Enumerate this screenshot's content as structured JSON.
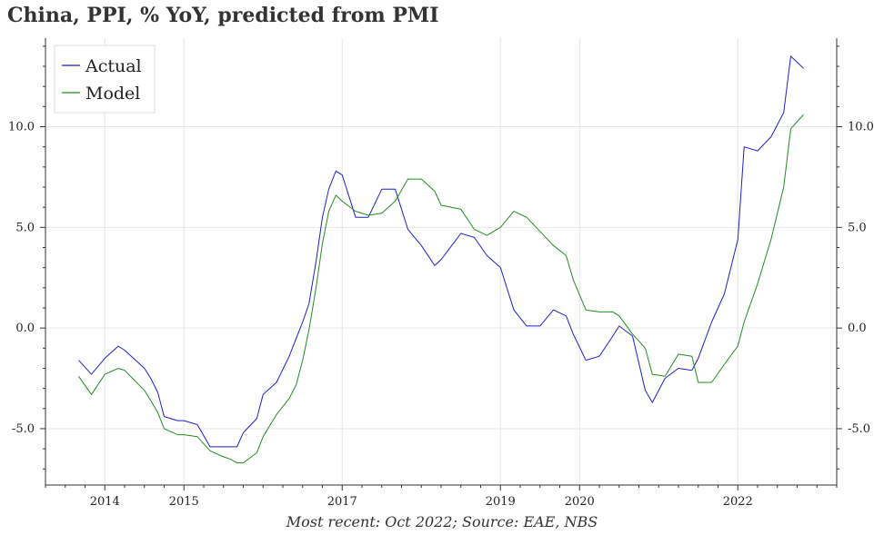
{
  "caption": "Most recent: Oct 2022; Source: EAE, NBS",
  "chart_data": {
    "type": "line",
    "title": "China, PPI, % YoY, predicted from PMI",
    "xlabel": "",
    "ylabel": "",
    "xlim": [
      2013.25,
      2023.25
    ],
    "ylim": [
      -7.8,
      14.4
    ],
    "x_ticks": [
      2014,
      2015,
      2017,
      2019,
      2020,
      2022
    ],
    "x_tick_labels": [
      "2014",
      "2015",
      "2017",
      "2019",
      "2020",
      "2022"
    ],
    "y_ticks": [
      -5,
      0,
      5,
      10
    ],
    "y_tick_labels": [
      "-5.0",
      "0.0",
      "5.0",
      "10.0"
    ],
    "grid": true,
    "legend": "top-left",
    "colors": {
      "Actual": "#1f1fcc",
      "Model": "#228b22"
    },
    "series": [
      {
        "name": "Actual",
        "x": [
          2013.67,
          2013.83,
          2014.0,
          2014.17,
          2014.25,
          2014.5,
          2014.58,
          2014.67,
          2014.75,
          2014.92,
          2015.0,
          2015.17,
          2015.33,
          2015.5,
          2015.58,
          2015.67,
          2015.75,
          2015.92,
          2016.0,
          2016.17,
          2016.33,
          2016.42,
          2016.5,
          2016.58,
          2016.67,
          2016.75,
          2016.83,
          2016.92,
          2017.0,
          2017.17,
          2017.33,
          2017.5,
          2017.67,
          2017.83,
          2018.0,
          2018.17,
          2018.25,
          2018.5,
          2018.67,
          2018.83,
          2019.0,
          2019.17,
          2019.33,
          2019.5,
          2019.67,
          2019.83,
          2019.92,
          2020.08,
          2020.25,
          2020.42,
          2020.5,
          2020.67,
          2020.83,
          2020.92,
          2021.08,
          2021.25,
          2021.42,
          2021.5,
          2021.67,
          2021.83,
          2022.0,
          2022.08,
          2022.25,
          2022.42,
          2022.58,
          2022.67,
          2022.83
        ],
        "y": [
          -1.6,
          -2.3,
          -1.5,
          -0.9,
          -1.1,
          -2.0,
          -2.5,
          -3.2,
          -4.4,
          -4.6,
          -4.6,
          -4.8,
          -5.9,
          -5.9,
          -5.9,
          -5.9,
          -5.2,
          -4.5,
          -3.3,
          -2.7,
          -1.4,
          -0.5,
          0.3,
          1.2,
          3.3,
          5.5,
          6.9,
          7.8,
          7.6,
          5.5,
          5.5,
          6.9,
          6.9,
          4.9,
          4.1,
          3.1,
          3.4,
          4.7,
          4.5,
          3.6,
          3.0,
          0.9,
          0.1,
          0.1,
          0.9,
          0.6,
          -0.3,
          -1.6,
          -1.4,
          -0.4,
          0.1,
          -0.4,
          -3.1,
          -3.7,
          -2.5,
          -2.0,
          -2.1,
          -1.5,
          0.3,
          1.7,
          4.4,
          9.0,
          8.8,
          9.5,
          10.7,
          13.5,
          12.9
        ]
      },
      {
        "name": "Model",
        "x": [
          2013.67,
          2013.83,
          2014.0,
          2014.17,
          2014.25,
          2014.5,
          2014.58,
          2014.67,
          2014.75,
          2014.92,
          2015.0,
          2015.17,
          2015.33,
          2015.5,
          2015.58,
          2015.67,
          2015.75,
          2015.92,
          2016.0,
          2016.17,
          2016.33,
          2016.42,
          2016.5,
          2016.58,
          2016.67,
          2016.75,
          2016.83,
          2016.92,
          2017.0,
          2017.17,
          2017.33,
          2017.5,
          2017.67,
          2017.83,
          2018.0,
          2018.17,
          2018.25,
          2018.5,
          2018.67,
          2018.83,
          2019.0,
          2019.17,
          2019.33,
          2019.5,
          2019.67,
          2019.83,
          2019.92,
          2020.08,
          2020.25,
          2020.42,
          2020.5,
          2020.67,
          2020.83,
          2020.92,
          2021.08,
          2021.25,
          2021.42,
          2021.5,
          2021.67,
          2021.83,
          2022.0,
          2022.08,
          2022.25,
          2022.42,
          2022.58,
          2022.67,
          2022.83
        ],
        "y": [
          -2.4,
          -3.3,
          -2.3,
          -2.0,
          -2.1,
          -3.1,
          -3.6,
          -4.2,
          -5.0,
          -5.3,
          -5.3,
          -5.4,
          -6.1,
          -6.4,
          -6.5,
          -6.7,
          -6.7,
          -6.2,
          -5.4,
          -4.3,
          -3.5,
          -2.8,
          -1.6,
          -0.1,
          2.0,
          4.2,
          5.8,
          6.6,
          6.3,
          5.8,
          5.6,
          5.7,
          6.3,
          7.4,
          7.4,
          6.8,
          6.1,
          5.9,
          4.9,
          4.6,
          5.0,
          5.8,
          5.5,
          4.8,
          4.1,
          3.6,
          2.4,
          0.9,
          0.8,
          0.8,
          0.6,
          -0.3,
          -1.0,
          -2.3,
          -2.4,
          -1.3,
          -1.4,
          -2.7,
          -2.7,
          -1.8,
          -0.9,
          0.3,
          2.2,
          4.4,
          7.0,
          9.9,
          10.6
        ]
      }
    ]
  }
}
